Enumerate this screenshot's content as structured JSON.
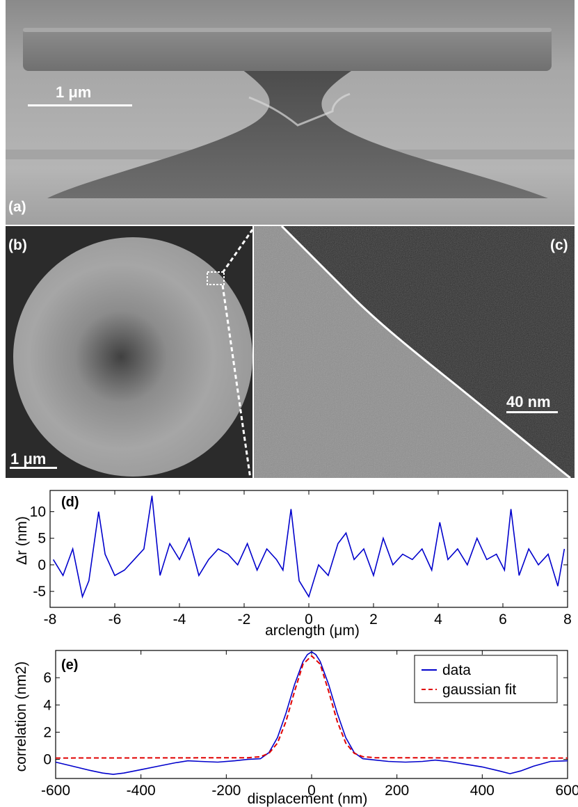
{
  "panels": {
    "a": {
      "label": "(a)",
      "scale_label": "1 μm"
    },
    "b": {
      "label": "(b)",
      "scale_label": "1 μm"
    },
    "c": {
      "label": "(c)",
      "scale_label": "40 nm"
    }
  },
  "chart_data": [
    {
      "type": "line",
      "panel_label": "(d)",
      "xlabel": "arclength (μm)",
      "ylabel": "Δr (nm)",
      "xlim": [
        -8,
        8
      ],
      "ylim": [
        -8,
        14
      ],
      "xticks": [
        -8,
        -6,
        -4,
        -2,
        0,
        2,
        4,
        6,
        8
      ],
      "yticks": [
        -5,
        0,
        5,
        10
      ],
      "series": [
        {
          "color": "#0000cc",
          "x": [
            -7.9,
            -7.6,
            -7.3,
            -7.0,
            -6.8,
            -6.5,
            -6.3,
            -6.0,
            -5.7,
            -5.4,
            -5.1,
            -4.85,
            -4.6,
            -4.3,
            -4.0,
            -3.7,
            -3.4,
            -3.1,
            -2.8,
            -2.5,
            -2.2,
            -1.9,
            -1.6,
            -1.3,
            -1.0,
            -0.8,
            -0.55,
            -0.3,
            0.0,
            0.3,
            0.6,
            0.9,
            1.15,
            1.4,
            1.7,
            2.0,
            2.3,
            2.6,
            2.9,
            3.2,
            3.5,
            3.8,
            4.05,
            4.3,
            4.6,
            4.9,
            5.2,
            5.5,
            5.8,
            6.05,
            6.25,
            6.5,
            6.8,
            7.1,
            7.4,
            7.7,
            7.9
          ],
          "y": [
            1,
            -2,
            3,
            -6,
            -3,
            10,
            2,
            -2,
            -1,
            1,
            3,
            13,
            -2,
            4,
            1,
            5,
            -2,
            1,
            3,
            2,
            0,
            4,
            -1,
            3,
            1,
            -1,
            10.5,
            -3,
            -6,
            0,
            -2,
            4,
            6,
            1,
            3,
            -2,
            5,
            0,
            2,
            1,
            3,
            -1,
            8,
            1,
            3,
            0,
            5,
            1,
            2,
            -1,
            10.5,
            -2,
            3,
            0,
            2,
            -4,
            3
          ]
        }
      ]
    },
    {
      "type": "line",
      "panel_label": "(e)",
      "xlabel": "displacement (nm)",
      "ylabel": "correlation (nm2)",
      "xlim": [
        -600,
        600
      ],
      "ylim": [
        -1.4,
        8
      ],
      "xticks": [
        -600,
        -400,
        -200,
        0,
        200,
        400,
        600
      ],
      "yticks": [
        0,
        2,
        4,
        6
      ],
      "legend_position": "top-right",
      "series": [
        {
          "name": "data",
          "color": "#0000cc",
          "style": "solid",
          "x": [
            -600,
            -560,
            -520,
            -490,
            -465,
            -440,
            -400,
            -360,
            -320,
            -290,
            -260,
            -220,
            -180,
            -150,
            -120,
            -100,
            -80,
            -60,
            -40,
            -20,
            -10,
            0,
            10,
            20,
            40,
            60,
            80,
            100,
            120,
            150,
            180,
            220,
            260,
            290,
            320,
            360,
            400,
            440,
            465,
            490,
            520,
            560,
            600
          ],
          "y": [
            -0.2,
            -0.5,
            -0.8,
            -1.0,
            -1.1,
            -1.0,
            -0.75,
            -0.5,
            -0.25,
            -0.1,
            -0.15,
            -0.2,
            -0.1,
            0.0,
            0.05,
            0.5,
            1.6,
            3.4,
            5.5,
            7.2,
            7.7,
            7.9,
            7.7,
            7.2,
            5.5,
            3.4,
            1.6,
            0.5,
            0.05,
            -0.05,
            -0.15,
            -0.2,
            -0.15,
            -0.05,
            -0.15,
            -0.35,
            -0.55,
            -0.85,
            -1.05,
            -0.85,
            -0.5,
            -0.15,
            -0.1
          ]
        },
        {
          "name": "gaussian fit",
          "color": "#e00000",
          "style": "dashed",
          "x": [
            -600,
            -150,
            -120,
            -100,
            -80,
            -60,
            -40,
            -20,
            0,
            20,
            40,
            60,
            80,
            100,
            120,
            150,
            600
          ],
          "y": [
            0.1,
            0.12,
            0.2,
            0.45,
            1.2,
            2.8,
            5.0,
            7.0,
            7.6,
            7.0,
            5.0,
            2.8,
            1.2,
            0.45,
            0.2,
            0.12,
            0.1
          ]
        }
      ]
    }
  ]
}
